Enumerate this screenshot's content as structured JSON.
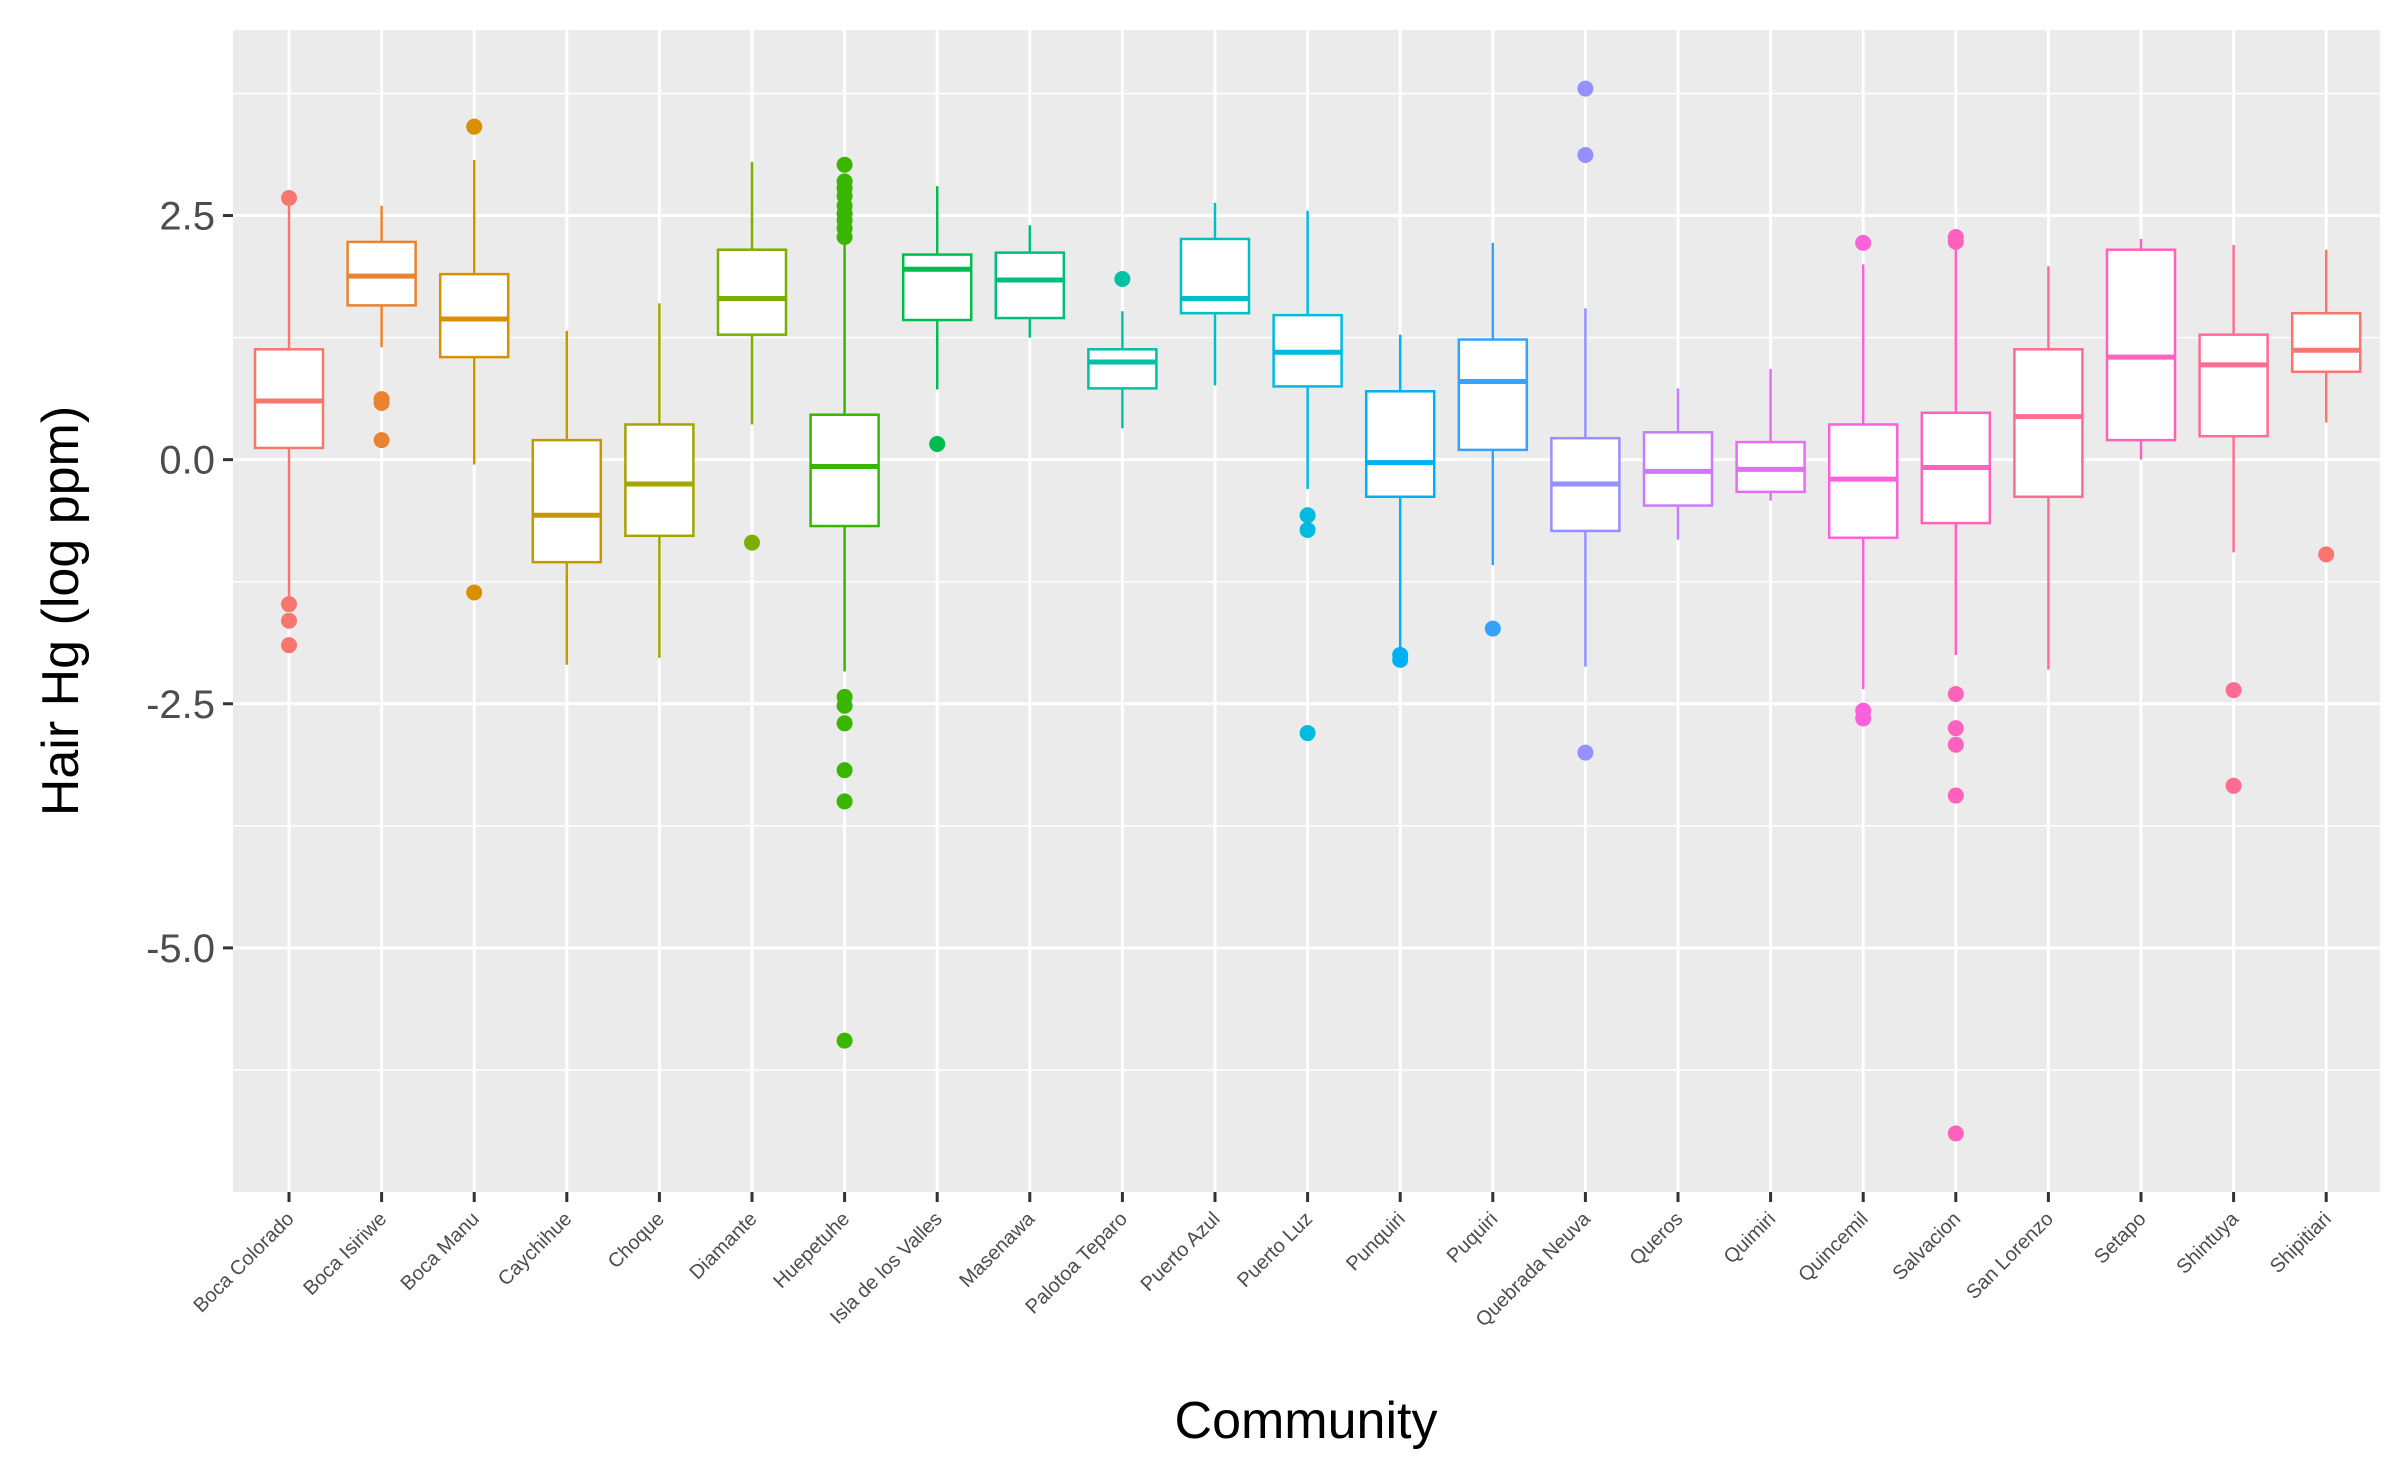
{
  "chart_data": {
    "type": "boxplot",
    "xlabel": "Community",
    "ylabel": "Hair Hg (log ppm)",
    "ylim": [
      -7.5,
      4.4
    ],
    "y_ticks": [
      2.5,
      0.0,
      -2.5,
      -5.0
    ],
    "y_tick_labels": [
      "2.5",
      "0.0",
      "-2.5",
      "-5.0"
    ],
    "grid": true,
    "legend": "none",
    "series": [
      {
        "name": "Boca Colorado",
        "color": "#F8766D",
        "q1": 0.12,
        "median": 0.6,
        "q3": 1.13,
        "whisker_low": -1.45,
        "whisker_high": 2.62,
        "outliers": [
          2.68,
          -1.48,
          -1.65,
          -1.9
        ]
      },
      {
        "name": "Boca Isiriwe",
        "color": "#EA8331",
        "q1": 1.58,
        "median": 1.88,
        "q3": 2.23,
        "whisker_low": 1.15,
        "whisker_high": 2.6,
        "outliers": [
          0.62,
          0.58,
          0.2
        ]
      },
      {
        "name": "Boca Manu",
        "color": "#D89000",
        "q1": 1.05,
        "median": 1.44,
        "q3": 1.9,
        "whisker_low": -0.05,
        "whisker_high": 3.07,
        "outliers": [
          3.41,
          -1.36
        ]
      },
      {
        "name": "Caychihue",
        "color": "#C09B00",
        "q1": -1.05,
        "median": -0.57,
        "q3": 0.2,
        "whisker_low": -2.1,
        "whisker_high": 1.32,
        "outliers": []
      },
      {
        "name": "Choque",
        "color": "#A3A500",
        "q1": -0.78,
        "median": -0.25,
        "q3": 0.36,
        "whisker_low": -2.03,
        "whisker_high": 1.6,
        "outliers": []
      },
      {
        "name": "Diamante",
        "color": "#7CAE00",
        "q1": 1.28,
        "median": 1.65,
        "q3": 2.15,
        "whisker_low": 0.36,
        "whisker_high": 3.05,
        "outliers": [
          -0.85
        ]
      },
      {
        "name": "Huepetuhe",
        "color": "#39B600",
        "q1": -0.68,
        "median": -0.07,
        "q3": 0.46,
        "whisker_low": -2.17,
        "whisker_high": 2.22,
        "outliers": [
          3.02,
          2.85,
          2.78,
          2.7,
          2.6,
          2.52,
          2.45,
          2.37,
          2.28,
          -2.43,
          -2.52,
          -2.7,
          -3.18,
          -3.5,
          -5.95
        ]
      },
      {
        "name": "Isla de los Valles",
        "color": "#00BB4E",
        "q1": 1.43,
        "median": 1.95,
        "q3": 2.1,
        "whisker_low": 0.72,
        "whisker_high": 2.8,
        "outliers": [
          0.16
        ]
      },
      {
        "name": "Masenawa",
        "color": "#00BF7D",
        "q1": 1.45,
        "median": 1.84,
        "q3": 2.12,
        "whisker_low": 1.25,
        "whisker_high": 2.4,
        "outliers": []
      },
      {
        "name": "Palotoa Teparo",
        "color": "#00C1A3",
        "q1": 0.73,
        "median": 1.0,
        "q3": 1.13,
        "whisker_low": 0.32,
        "whisker_high": 1.52,
        "outliers": [
          1.85
        ]
      },
      {
        "name": "Puerto Azul",
        "color": "#00BFC4",
        "q1": 1.5,
        "median": 1.65,
        "q3": 2.26,
        "whisker_low": 0.76,
        "whisker_high": 2.63,
        "outliers": []
      },
      {
        "name": "Puerto Luz",
        "color": "#00BAE0",
        "q1": 0.75,
        "median": 1.1,
        "q3": 1.48,
        "whisker_low": -0.3,
        "whisker_high": 2.55,
        "outliers": [
          -0.57,
          -0.72,
          -2.8
        ]
      },
      {
        "name": "Punquiri",
        "color": "#00B0F6",
        "q1": -0.38,
        "median": -0.03,
        "q3": 0.7,
        "whisker_low": -1.93,
        "whisker_high": 1.28,
        "outliers": [
          -2.0,
          -2.05
        ]
      },
      {
        "name": "Puquiri",
        "color": "#35A2FF",
        "q1": 0.1,
        "median": 0.8,
        "q3": 1.23,
        "whisker_low": -1.08,
        "whisker_high": 2.22,
        "outliers": [
          -1.73
        ]
      },
      {
        "name": "Quebrada Neuva",
        "color": "#9590FF",
        "q1": -0.73,
        "median": -0.25,
        "q3": 0.22,
        "whisker_low": -2.12,
        "whisker_high": 1.55,
        "outliers": [
          3.8,
          3.12,
          -3.0
        ]
      },
      {
        "name": "Queros",
        "color": "#C77CFF",
        "q1": -0.47,
        "median": -0.12,
        "q3": 0.28,
        "whisker_low": -0.82,
        "whisker_high": 0.73,
        "outliers": []
      },
      {
        "name": "Quimiri",
        "color": "#E76BF3",
        "q1": -0.33,
        "median": -0.1,
        "q3": 0.18,
        "whisker_low": -0.42,
        "whisker_high": 0.93,
        "outliers": []
      },
      {
        "name": "Quincemil",
        "color": "#FA62DB",
        "q1": -0.8,
        "median": -0.2,
        "q3": 0.36,
        "whisker_low": -2.35,
        "whisker_high": 2.0,
        "outliers": [
          2.22,
          -2.57,
          -2.65
        ]
      },
      {
        "name": "Salvacion",
        "color": "#FF62BC",
        "q1": -0.65,
        "median": -0.08,
        "q3": 0.48,
        "whisker_low": -2.0,
        "whisker_high": 2.2,
        "outliers": [
          2.28,
          2.23,
          -2.4,
          -2.75,
          -2.92,
          -3.44,
          -6.9
        ]
      },
      {
        "name": "San Lorenzo",
        "color": "#FF6C91",
        "q1": -0.38,
        "median": 0.44,
        "q3": 1.13,
        "whisker_low": -2.15,
        "whisker_high": 1.98,
        "outliers": []
      },
      {
        "name": "Setapo",
        "color": "#FF62BC",
        "q1": 0.2,
        "median": 1.05,
        "q3": 2.15,
        "whisker_low": 0.0,
        "whisker_high": 2.26,
        "outliers": []
      },
      {
        "name": "Shintuya",
        "color": "#FF6C91",
        "q1": 0.24,
        "median": 0.97,
        "q3": 1.28,
        "whisker_low": -0.95,
        "whisker_high": 2.2,
        "outliers": [
          -2.36,
          -3.34
        ]
      },
      {
        "name": "Shipitiari",
        "color": "#F8766D",
        "q1": 0.9,
        "median": 1.12,
        "q3": 1.5,
        "whisker_low": 0.38,
        "whisker_high": 2.15,
        "outliers": [
          -0.97
        ]
      }
    ]
  }
}
